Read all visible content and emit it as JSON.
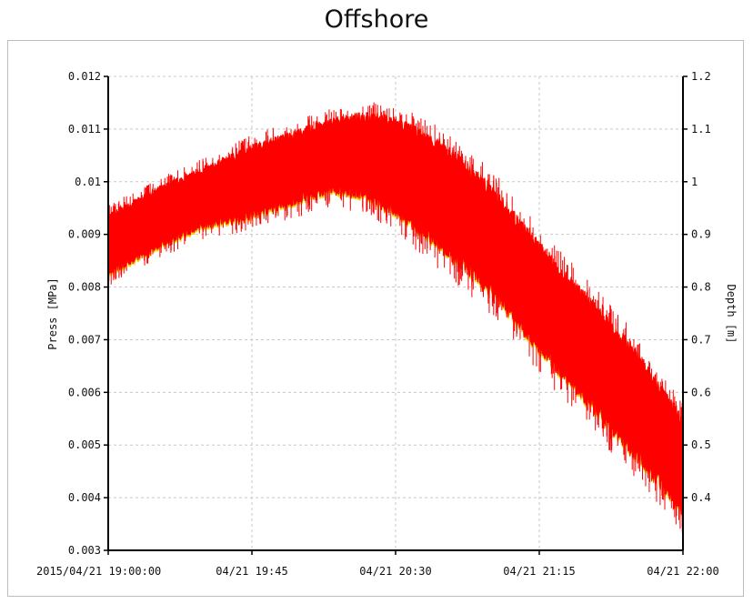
{
  "chart_data": {
    "type": "line",
    "title": "Offshore",
    "ylabel_left": "Press [MPa]",
    "ylabel_right": "Depth [m]",
    "xlabel": "",
    "x_tick_labels": [
      "2015/04/21 19:00:00",
      "04/21 19:45",
      "04/21 20:30",
      "04/21 21:15",
      "04/21 22:00"
    ],
    "x_range": [
      "2015/04/21 19:00:00",
      "2015/04/21 22:00:00"
    ],
    "ylim_left": [
      0.003,
      0.012
    ],
    "ylim_right": [
      0.3,
      1.2
    ],
    "y_ticks_left": [
      "0.003",
      "0.004",
      "0.005",
      "0.006",
      "0.007",
      "0.008",
      "0.009",
      "0.01",
      "0.011",
      "0.012"
    ],
    "y_ticks_right": [
      "0.4",
      "0.5",
      "0.6",
      "0.7",
      "0.8",
      "0.9",
      "1",
      "1.1",
      "1.2"
    ],
    "grid": true,
    "series": [
      {
        "color": "#ff0000",
        "x": [
          "19:00",
          "19:15",
          "19:30",
          "19:45",
          "20:00",
          "20:10",
          "20:20",
          "20:30",
          "20:45",
          "21:00",
          "21:15",
          "21:30",
          "21:45",
          "22:00"
        ],
        "center": [
          0.0088,
          0.0093,
          0.0097,
          0.01,
          0.0103,
          0.0105,
          0.0105,
          0.0103,
          0.0097,
          0.0089,
          0.0078,
          0.0068,
          0.0058,
          0.0046
        ],
        "amplitude": [
          0.0005,
          0.0005,
          0.0005,
          0.0006,
          0.0006,
          0.0006,
          0.0007,
          0.0008,
          0.0009,
          0.0009,
          0.0009,
          0.0009,
          0.0009,
          0.0008
        ]
      }
    ]
  }
}
